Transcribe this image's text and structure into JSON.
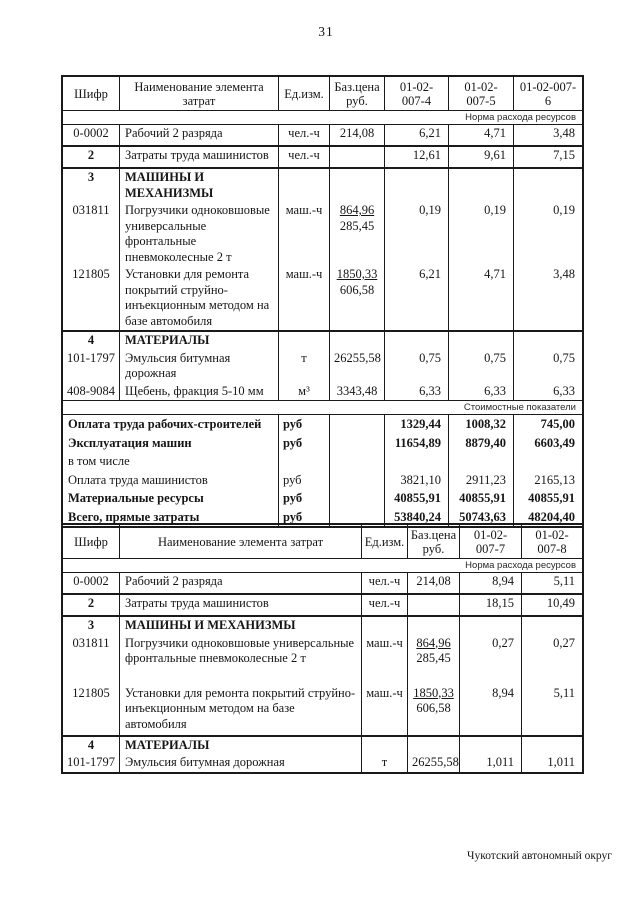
{
  "page": {
    "number": "31",
    "footer": "Чукотский автономный округ"
  },
  "labels": {
    "resource_band": "Норма расхода ресурсов",
    "cost_band": "Стоимостные показатели"
  },
  "table1": {
    "header": {
      "code": "Шифр",
      "name": "Наименование элемента затрат",
      "unit": "Ед.изм.",
      "price": "Баз.цена руб.",
      "col1": "01-02-007-4",
      "col2": "01-02-007-5",
      "col3": "01-02-007-6"
    },
    "rows": {
      "worker": {
        "code": "0-0002",
        "name": "Рабочий 2 разряда",
        "unit": "чел.-ч",
        "price": "214,08",
        "v1": "6,21",
        "v2": "4,71",
        "v3": "3,48"
      },
      "machinists": {
        "code": "2",
        "name": "Затраты труда машинистов",
        "unit": "чел.-ч",
        "v1": "12,61",
        "v2": "9,61",
        "v3": "7,15"
      },
      "sec3": {
        "code": "3",
        "name": "МАШИНЫ И МЕХАНИЗМЫ"
      },
      "loader": {
        "code": "031811",
        "name": "Погрузчики одноковшовые универсальные фронтальные пневмоколесные 2 т",
        "unit": "маш.-ч",
        "price_top": "864,96",
        "price_bottom": "285,45",
        "v1": "0,19",
        "v2": "0,19",
        "v3": "0,19"
      },
      "repair_unit": {
        "code": "121805",
        "name": "Установки для ремонта покрытий струйно-инъекционным методом на базе автомобиля",
        "unit": "маш.-ч",
        "price_top": "1850,33",
        "price_bottom": "606,58",
        "v1": "6,21",
        "v2": "4,71",
        "v3": "3,48"
      },
      "sec4": {
        "code": "4",
        "name": "МАТЕРИАЛЫ"
      },
      "emulsion": {
        "code": "101-1797",
        "name": "Эмульсия битумная дорожная",
        "unit": "т",
        "price": "26255,58",
        "v1": "0,75",
        "v2": "0,75",
        "v3": "0,75"
      },
      "gravel": {
        "code": "408-9084",
        "name": "Щебень, фракция 5-10 мм",
        "unit": "м³",
        "price": "3343,48",
        "v1": "6,33",
        "v2": "6,33",
        "v3": "6,33"
      }
    },
    "cost_rows": {
      "builders_pay": {
        "label": "Оплата труда рабочих-строителей",
        "unit": "руб",
        "v1": "1329,44",
        "v2": "1008,32",
        "v3": "745,00"
      },
      "machines": {
        "label": "Эксплуатация машин",
        "unit": "руб",
        "v1": "11654,89",
        "v2": "8879,40",
        "v3": "6603,49"
      },
      "including": {
        "label": "в том числе"
      },
      "machinists_pay": {
        "label": "Оплата труда машинистов",
        "unit": "руб",
        "v1": "3821,10",
        "v2": "2911,23",
        "v3": "2165,13"
      },
      "materials": {
        "label": "Материальные ресурсы",
        "unit": "руб",
        "v1": "40855,91",
        "v2": "40855,91",
        "v3": "40855,91"
      },
      "total": {
        "label": "Всего, прямые затраты",
        "unit": "руб",
        "v1": "53840,24",
        "v2": "50743,63",
        "v3": "48204,40"
      }
    }
  },
  "table2": {
    "header": {
      "code": "Шифр",
      "name": "Наименование элемента затрат",
      "unit": "Ед.изм.",
      "price": "Баз.цена руб.",
      "col1": "01-02-007-7",
      "col2": "01-02-007-8"
    },
    "rows": {
      "worker": {
        "code": "0-0002",
        "name": "Рабочий 2 разряда",
        "unit": "чел.-ч",
        "price": "214,08",
        "v1": "8,94",
        "v2": "5,11"
      },
      "machinists": {
        "code": "2",
        "name": "Затраты труда машинистов",
        "unit": "чел.-ч",
        "v1": "18,15",
        "v2": "10,49"
      },
      "sec3": {
        "code": "3",
        "name": "МАШИНЫ И МЕХАНИЗМЫ"
      },
      "loader": {
        "code": "031811",
        "name": "Погрузчики одноковшовые универсальные фронтальные пневмоколесные 2 т",
        "unit": "маш.-ч",
        "price_top": "864,96",
        "price_bottom": "285,45",
        "v1": "0,27",
        "v2": "0,27"
      },
      "repair_unit": {
        "code": "121805",
        "name": "Установки для ремонта покрытий струйно-инъекционным методом на базе автомобиля",
        "unit": "маш.-ч",
        "price_top": "1850,33",
        "price_bottom": "606,58",
        "v1": "8,94",
        "v2": "5,11"
      },
      "sec4": {
        "code": "4",
        "name": "МАТЕРИАЛЫ"
      },
      "emulsion": {
        "code": "101-1797",
        "name": "Эмульсия битумная дорожная",
        "unit": "т",
        "price": "26255,58",
        "v1": "1,011",
        "v2": "1,011"
      }
    }
  }
}
